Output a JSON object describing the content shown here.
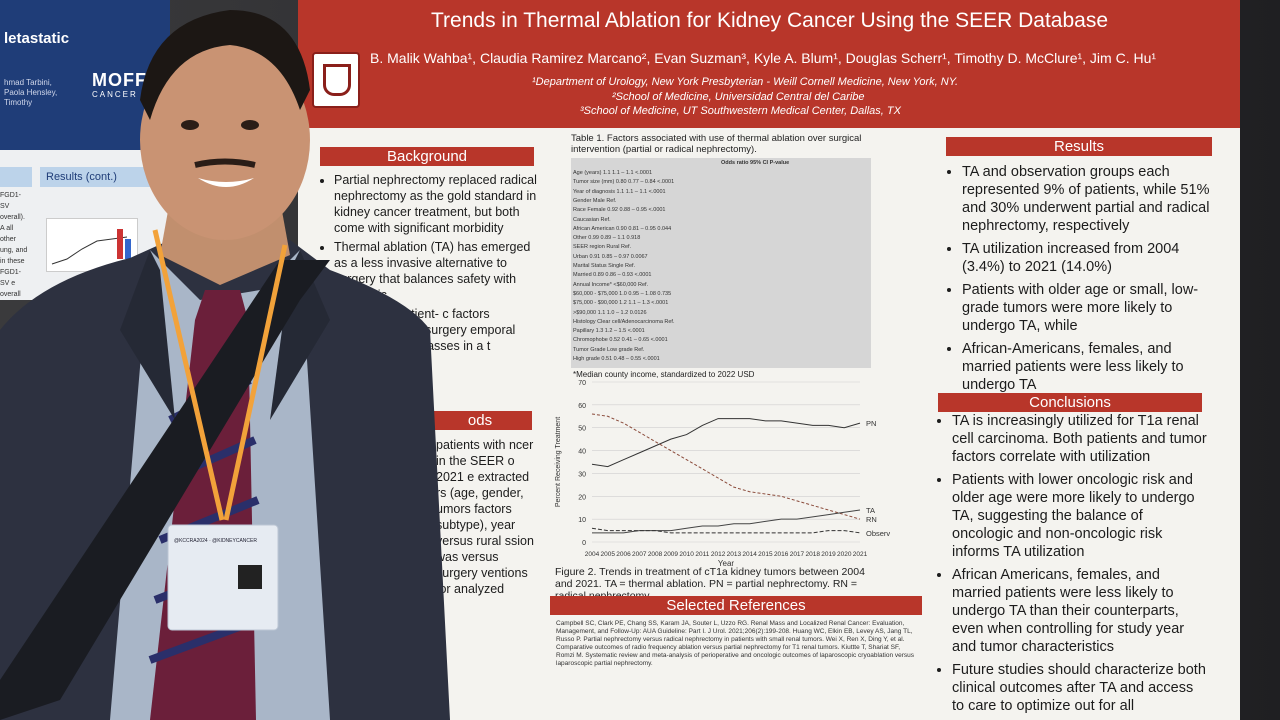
{
  "left_poster": {
    "title": "letastatic",
    "authors": "hmad Tarbini, Paola Hensley, Timothy",
    "logo": "MOFF",
    "logo_sub": "CANCER C",
    "results_tab": "Results (cont.)",
    "side_text": "FGD1-SV overall). A all other ung, and in these FGD1-SV e overall with ociated"
  },
  "poster": {
    "title": "Trends in Thermal Ablation for Kidney Cancer Using the SEER Database",
    "authors": "B. Malik Wahba¹, Claudia Ramirez Marcano², Evan Suzman³, Kyle A. Blum¹, Douglas Scherr¹, Timothy D. McClure¹, Jim C. Hu¹",
    "affiliations": [
      "¹Department of Urology, New York Presbyterian - Weill Cornell Medicine, New York, NY.",
      "²School of Medicine, Universidad Central del Caribe",
      "³School of Medicine, UT Southwestern Medical Center, Dallas, TX"
    ],
    "background_head": "Background",
    "background": [
      "Partial nephrectomy replaced radical nephrectomy as the gold standard in kidney cancer treatment, but both come with significant morbidity",
      "Thermal ablation (TA) has emerged as a less invasive alternative to surgery that balances safety with oncologic",
      "insight into patient- c factors associated over surgery emporal trends in renal masses in a t"
    ],
    "methods_head": "ods",
    "methods_text": "patients with ncer in the SEER o 2021 e extracted rs (age, gender, umors factors subtype), year versus rural ssion was versus surgery ventions for analyzed",
    "table_caption": "Table 1. Factors associated with use of thermal ablation over surgical intervention (partial or radical nephrectomy).",
    "table_header": "Odds ratio     95% CI     P-value",
    "table_rows": [
      "Age (years)                    1.1      1.1 – 1.1      <.0001",
      "Tumor size (mm)             0.80     0.77 – 0.84     <.0001",
      "Year of diagnosis            1.1      1.1 – 1.1      <.0001",
      "Gender        Male                      Ref.",
      "Race        Female           0.92     0.88 – 0.95     <.0001",
      "              Caucasian                 Ref.",
      "              African American   0.90     0.81 – 0.95     0.044",
      "              Other              0.99     0.89 – 1.1      0.918",
      "SEER region   Rural                     Ref.",
      "              Urban              0.91     0.85 – 0.97     0.0067",
      "Marital Status  Single                  Ref.",
      "              Married            0.89     0.86 – 0.93     <.0001",
      "Annual Income*  <$60,000                Ref.",
      "              $60,000 - $75,000  1.0      0.95 – 1.08     0.735",
      "              $75,000 - $90,000  1.2      1.1 – 1.3       <.0001",
      "              >$90,000           1.1      1.0 – 1.2       0.0126",
      "Histology     Clear cell/Adenocarcinoma  Ref.",
      "              Papillary          1.3      1.2 – 1.5       <.0001",
      "              Chromophobe        0.52     0.41 – 0.65     <.0001",
      "Tumor Grade   Low grade                 Ref.",
      "              High grade         0.51     0.48 – 0.55     <.0001"
    ],
    "table_footnote": "*Median county income, standardized to 2022 USD",
    "figure_caption": "Figure 2. Trends in treatment of cT1a kidney tumors between 2004 and 2021. TA = thermal ablation. PN = partial nephrectomy. RN = radical nephrectomy.",
    "refs_head": "Selected References",
    "refs_text": "Campbell SC, Clark PE, Chang SS, Karam JA, Souter L, Uzzo RG. Renal Mass and Localized Renal Cancer: Evaluation, Management, and Follow-Up: AUA Guideline: Part I. J Urol. 2021;206(2):199-208. Huang WC, Elkin EB, Levey AS, Jang TL, Russo P. Partial nephrectomy versus radical nephrectomy in patients with small renal tumors. Wei X, Ren X, Ding Y, et al. Comparative outcomes of radio frequency ablation versus partial nephrectomy for T1 renal tumors. Kiuttte T, Shariat SF, Romzi M. Systematic review and meta-analysis of perioperative and oncologic outcomes of laparoscopic cryoablation versus laparoscopic partial nephrectomy.",
    "results_head": "Results",
    "results": [
      "TA and observation groups each represented 9% of patients, while 51% and 30% underwent partial and radical nephrectomy, respectively",
      "TA utilization increased from 2004 (3.4%) to 2021 (14.0%)",
      "Patients with older age or small, low-grade tumors were more likely to undergo TA, while",
      "African-Americans, females, and married patients were less likely to undergo TA"
    ],
    "conclusions_head": "Conclusions",
    "conclusions": [
      "TA is increasingly utilized for T1a renal cell carcinoma. Both patients and tumor factors correlate with utilization",
      "Patients with lower oncologic risk and older age were more likely to undergo TA, suggesting the balance of oncologic and non-oncologic risk informs TA utilization",
      "African Americans, females, and married patients were less likely to undergo TA than their counterparts, even when controlling for study year and tumor characteristics",
      "Future studies should characterize both clinical outcomes after TA and access to care to optimize out for all"
    ]
  },
  "badge": {
    "header": "@KCCRA2024 · @KIDNEYCANCER"
  },
  "chart_data": {
    "type": "line",
    "ylabel": "Percent Receiving Treatment",
    "xlabel": "Year",
    "ylim": [
      0,
      70
    ],
    "yticks": [
      0,
      10,
      20,
      30,
      40,
      50,
      60,
      70
    ],
    "x": [
      2004,
      2005,
      2006,
      2007,
      2008,
      2009,
      2010,
      2011,
      2012,
      2013,
      2014,
      2015,
      2016,
      2017,
      2018,
      2019,
      2020,
      2021
    ],
    "series": [
      {
        "name": "PN",
        "values": [
          34,
          33,
          36,
          39,
          42,
          45,
          47,
          51,
          54,
          54,
          54,
          53,
          53,
          52,
          51,
          51,
          50,
          52
        ]
      },
      {
        "name": "RN",
        "values": [
          56,
          55,
          52,
          48,
          44,
          40,
          36,
          32,
          28,
          24,
          22,
          21,
          20,
          18,
          16,
          14,
          12,
          10
        ]
      },
      {
        "name": "TA",
        "values": [
          4,
          4,
          4,
          5,
          5,
          5,
          6,
          7,
          7,
          8,
          8,
          9,
          10,
          10,
          11,
          12,
          13,
          14
        ]
      },
      {
        "name": "Observation",
        "values": [
          6,
          5,
          5,
          5,
          5,
          4,
          4,
          4,
          4,
          4,
          4,
          4,
          4,
          4,
          4,
          5,
          5,
          4
        ]
      }
    ]
  }
}
